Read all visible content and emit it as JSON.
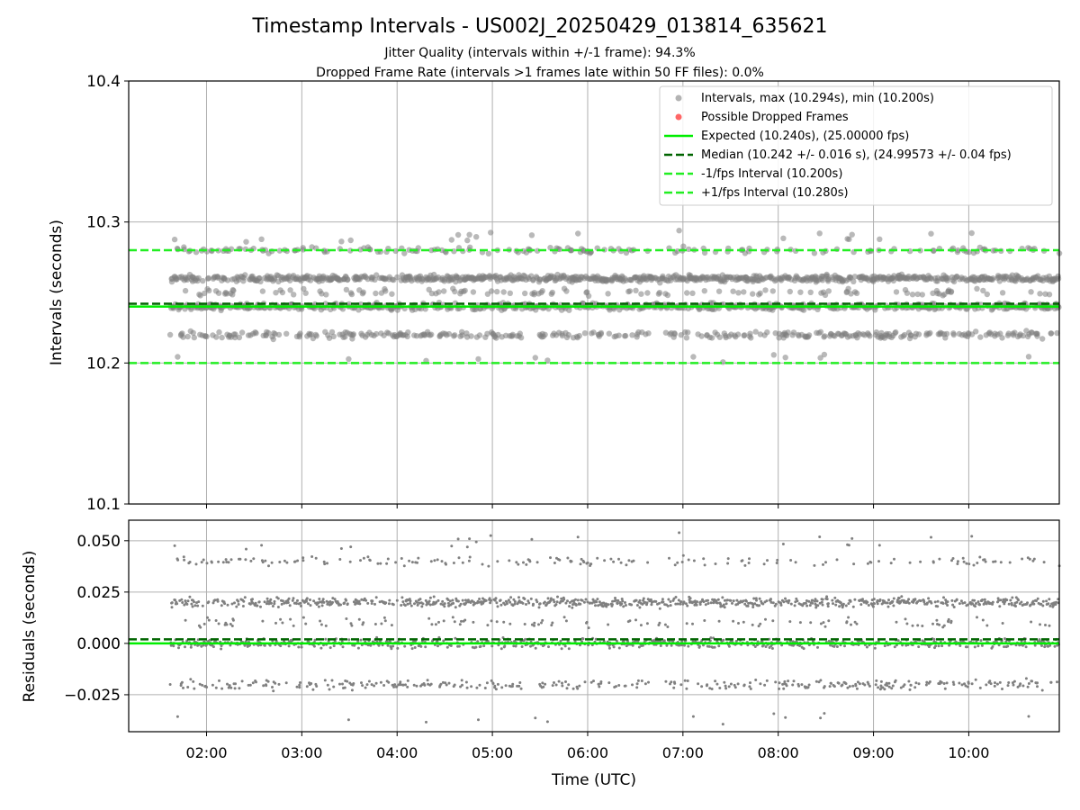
{
  "title": "Timestamp Intervals - US002J_20250429_013814_635621",
  "subtitle1": "Jitter Quality (intervals within +/-1 frame): 94.3%",
  "subtitle2": "Dropped Frame Rate (intervals >1 frames late within 50 FF files): 0.0%",
  "colors": {
    "points": "#808080",
    "dropped": "#ff0000",
    "expected": "#00ee00",
    "median": "#006400",
    "interval": "#22ee22",
    "grid": "#b0b0b0"
  },
  "chart_data": [
    {
      "type": "scatter",
      "ylabel": "Intervals (seconds)",
      "ylim": [
        10.1,
        10.4
      ],
      "y_ticks": [
        "10.1",
        "10.2",
        "10.3",
        "10.4"
      ],
      "y_tick_values": [
        10.1,
        10.2,
        10.3,
        10.4
      ],
      "x_range_hours": [
        1.183,
        10.95
      ],
      "data_span_hours": [
        1.62,
        10.95
      ],
      "grid": true,
      "legend_placement": "upper-right",
      "legend": {
        "intervals": "Intervals, max (10.294s), min (10.200s)",
        "dropped": "Possible Dropped Frames",
        "expected": "Expected (10.240s), (25.00000 fps)",
        "median": "Median (10.242 +/- 0.016 s), (24.99573 +/- 0.04 fps)",
        "minus": "-1/fps Interval (10.200s)",
        "plus": "+1/fps Interval (10.280s)"
      },
      "lines": {
        "expected": 10.24,
        "median": 10.242,
        "minus_interval": 10.2,
        "plus_interval": 10.28
      },
      "clusters": [
        {
          "center": 10.26,
          "weight": 0.38
        },
        {
          "center": 10.24,
          "weight": 0.33
        },
        {
          "center": 10.22,
          "weight": 0.16
        },
        {
          "center": 10.28,
          "weight": 0.08
        },
        {
          "center": 10.25,
          "weight": 0.05
        }
      ],
      "max": 10.294,
      "min": 10.2
    },
    {
      "type": "scatter",
      "xlabel": "Time (UTC)",
      "ylabel": "Residuals (seconds)",
      "ylim": [
        -0.043,
        0.06
      ],
      "y_ticks": [
        "−0.025",
        "0.000",
        "0.025",
        "0.050"
      ],
      "y_tick_values": [
        -0.025,
        0.0,
        0.025,
        0.05
      ],
      "x_ticks": [
        "02:00",
        "03:00",
        "04:00",
        "05:00",
        "06:00",
        "07:00",
        "08:00",
        "09:00",
        "10:00"
      ],
      "x_tick_values": [
        2,
        3,
        4,
        5,
        6,
        7,
        8,
        9,
        10
      ],
      "grid": true,
      "lines": {
        "expected": 0.0,
        "median": 0.002
      },
      "clusters": [
        {
          "center": 0.02,
          "weight": 0.38
        },
        {
          "center": 0.0,
          "weight": 0.33
        },
        {
          "center": -0.02,
          "weight": 0.16
        },
        {
          "center": 0.04,
          "weight": 0.08
        },
        {
          "center": 0.01,
          "weight": 0.05
        }
      ],
      "max": 0.054,
      "min": -0.04
    }
  ]
}
